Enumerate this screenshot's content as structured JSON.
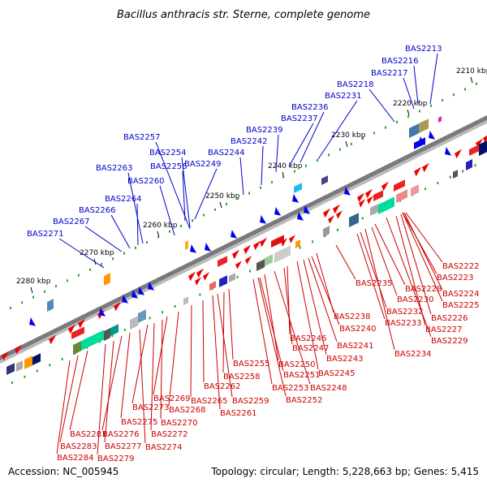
{
  "title": "Bacillus anthracis str. Sterne, complete genome",
  "footer": {
    "accession": "Accession: NC_005945",
    "stats": "Topology: circular; Length: 5,228,663 bp; Genes: 5,415"
  },
  "kbp_ticks": [
    "2210 kbp",
    "2220 kbp",
    "2230 kbp",
    "2240 kbp",
    "2250 kbp",
    "2260 kbp",
    "2270 kbp",
    "2280 kbp"
  ],
  "labels_top": [
    "BAS2213",
    "BAS2216",
    "BAS2217",
    "BAS2218",
    "BAS2231",
    "BAS2236",
    "BAS2237",
    "BAS2239",
    "BAS2242",
    "BAS2244",
    "BAS2249",
    "BAS2254",
    "BAS2256",
    "BAS2257",
    "BAS2260",
    "BAS2263",
    "BAS2264",
    "BAS2266",
    "BAS2267",
    "BAS2271"
  ],
  "labels_bottom": [
    "BAS2222",
    "BAS2223",
    "BAS2224",
    "BAS2225",
    "BAS2226",
    "BAS2227",
    "BAS2228",
    "BAS2229",
    "BAS2230",
    "BAS2232",
    "BAS2233",
    "BAS2234",
    "BAS2235",
    "BAS2238",
    "BAS2240",
    "BAS2241",
    "BAS2243",
    "BAS2245",
    "BAS2246",
    "BAS2247",
    "BAS2248",
    "BAS2250",
    "BAS2251",
    "BAS2252",
    "BAS2253",
    "BAS2255",
    "BAS2258",
    "BAS2259",
    "BAS2261",
    "BAS2262",
    "BAS2265",
    "BAS2268",
    "BAS2269",
    "BAS2270",
    "BAS2272",
    "BAS2273",
    "BAS2274",
    "BAS2275",
    "BAS2276",
    "BAS2277",
    "BAS2279",
    "BAS2281",
    "BAS2283",
    "BAS2284"
  ],
  "colors": {
    "label_top": "#0000cc",
    "label_bottom": "#cc0000",
    "backbone": "#888888",
    "forward_gene": "#0000ee",
    "reverse_gene": "#ee0000",
    "rna_tick": "#22aa22"
  }
}
